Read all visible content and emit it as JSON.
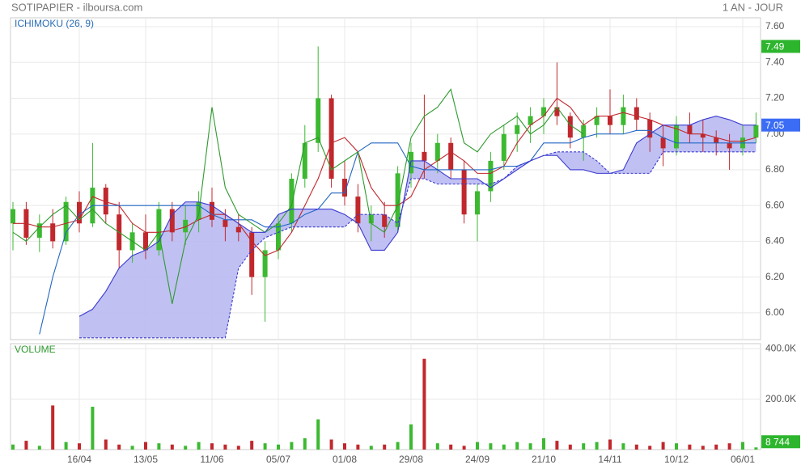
{
  "title": "SOTIPAPIER - ilboursa.com",
  "period": "1 AN - JOUR",
  "chart_data": [
    {
      "type": "candlestick",
      "label": "ICHIMOKU (26, 9)",
      "up_color": "#3cb931",
      "down_color": "#c0282d",
      "open": [
        6.5,
        6.58,
        6.42,
        6.5,
        6.4,
        6.62,
        6.5,
        6.7,
        6.55,
        6.35,
        6.45,
        6.35,
        6.58,
        6.45,
        6.52,
        6.62,
        6.52,
        6.48,
        6.45,
        6.2,
        6.35,
        6.5,
        6.75,
        6.95,
        7.2,
        6.75,
        6.65,
        6.5,
        6.55,
        6.48,
        6.78,
        6.9,
        6.85,
        6.95,
        6.8,
        6.55,
        6.68,
        6.85,
        7.0,
        7.05,
        7.1,
        7.15,
        7.1,
        6.98,
        7.05,
        7.1,
        7.05,
        7.15,
        7.08,
        6.98,
        6.92,
        7.05,
        7.0,
        6.98,
        6.95,
        6.92,
        6.98
      ],
      "high": [
        6.62,
        6.62,
        6.55,
        6.58,
        6.65,
        6.68,
        6.95,
        6.72,
        6.62,
        6.5,
        6.55,
        6.62,
        6.62,
        6.6,
        6.68,
        6.7,
        6.58,
        6.55,
        6.48,
        6.4,
        6.55,
        6.78,
        7.05,
        7.49,
        7.22,
        6.85,
        6.72,
        6.6,
        6.62,
        6.82,
        6.95,
        7.22,
        7.0,
        6.98,
        6.85,
        6.72,
        6.9,
        7.05,
        7.12,
        7.15,
        7.2,
        7.4,
        7.12,
        7.08,
        7.15,
        7.25,
        7.22,
        7.2,
        7.12,
        7.05,
        7.1,
        7.12,
        7.08,
        7.02,
        7.0,
        7.05,
        7.12
      ],
      "low": [
        6.35,
        6.38,
        6.34,
        6.36,
        6.38,
        6.45,
        6.48,
        6.5,
        6.25,
        6.28,
        6.3,
        6.32,
        6.4,
        6.38,
        6.45,
        6.48,
        6.4,
        6.4,
        6.1,
        5.95,
        6.3,
        6.45,
        6.7,
        6.9,
        6.7,
        6.6,
        6.45,
        6.4,
        6.42,
        6.45,
        6.7,
        6.75,
        6.78,
        6.75,
        6.5,
        6.4,
        6.62,
        6.8,
        6.9,
        6.95,
        7.0,
        7.05,
        6.92,
        6.85,
        6.98,
        7.0,
        7.0,
        7.02,
        6.9,
        6.82,
        6.88,
        6.95,
        6.9,
        6.88,
        6.8,
        6.88,
        6.95
      ],
      "close": [
        6.58,
        6.42,
        6.5,
        6.4,
        6.62,
        6.5,
        6.7,
        6.55,
        6.35,
        6.45,
        6.35,
        6.58,
        6.45,
        6.52,
        6.62,
        6.52,
        6.48,
        6.45,
        6.2,
        6.35,
        6.5,
        6.75,
        6.95,
        7.2,
        6.75,
        6.65,
        6.5,
        6.55,
        6.48,
        6.78,
        6.9,
        6.85,
        6.95,
        6.8,
        6.55,
        6.68,
        6.85,
        7.0,
        7.05,
        7.1,
        7.15,
        7.1,
        6.98,
        7.05,
        7.1,
        7.05,
        7.15,
        7.08,
        6.98,
        6.92,
        7.05,
        7.0,
        6.98,
        6.95,
        6.92,
        6.98,
        7.05
      ],
      "series": [
        {
          "color": "#c0282d",
          "values": [
            6.5,
            6.5,
            6.48,
            6.48,
            6.5,
            6.52,
            6.65,
            6.62,
            6.6,
            6.5,
            6.45,
            6.45,
            6.46,
            6.48,
            6.52,
            6.55,
            6.55,
            6.5,
            6.4,
            6.32,
            6.35,
            6.45,
            6.6,
            6.75,
            6.95,
            6.98,
            6.9,
            6.7,
            6.6,
            6.6,
            6.65,
            6.8,
            6.85,
            6.9,
            6.85,
            6.78,
            6.78,
            6.82,
            6.95,
            7.05,
            7.1,
            7.2,
            7.15,
            7.05,
            7.1,
            7.1,
            7.12,
            7.1,
            7.08,
            7.05,
            7.03,
            7.0,
            7.0,
            6.98,
            6.96,
            6.96,
            6.98
          ]
        },
        {
          "color": "#2166c4",
          "values": [
            null,
            null,
            5.88,
            6.2,
            6.45,
            6.55,
            6.6,
            6.6,
            6.6,
            6.6,
            6.6,
            6.6,
            6.6,
            6.6,
            6.6,
            6.55,
            6.52,
            6.52,
            6.52,
            6.48,
            6.48,
            6.5,
            6.55,
            6.58,
            6.67,
            6.67,
            6.9,
            6.95,
            6.95,
            6.95,
            6.82,
            6.8,
            6.8,
            6.8,
            6.8,
            6.8,
            6.8,
            6.82,
            6.82,
            6.85,
            6.95,
            6.95,
            6.95,
            6.98,
            7.0,
            7.0,
            7.0,
            7.02,
            7.02,
            6.98,
            6.95,
            6.95,
            6.95,
            6.95,
            6.95,
            6.95,
            6.95
          ]
        },
        {
          "color": "#2e9a2e",
          "values": [
            6.45,
            6.4,
            6.48,
            6.55,
            6.6,
            6.52,
            6.58,
            6.5,
            6.45,
            6.4,
            6.35,
            6.45,
            6.05,
            6.4,
            6.55,
            7.15,
            6.7,
            6.55,
            6.5,
            6.45,
            6.5,
            6.6,
            6.95,
            6.98,
            6.8,
            6.85,
            6.9,
            6.5,
            6.45,
            6.6,
            6.98,
            7.1,
            7.15,
            7.25,
            6.95,
            6.9,
            7.0,
            7.05,
            7.1,
            7.0,
            7.05,
            7.15,
            7.05,
            7.0,
            null,
            null,
            null,
            null,
            null,
            null,
            null,
            null,
            null,
            null,
            null,
            null,
            null
          ]
        },
        {
          "color": "#3a3ad0",
          "values": [
            null,
            null,
            null,
            null,
            null,
            5.98,
            6.02,
            6.12,
            6.25,
            6.32,
            6.35,
            6.4,
            6.55,
            6.62,
            6.62,
            6.6,
            6.55,
            6.5,
            6.45,
            6.45,
            6.55,
            6.58,
            6.58,
            6.58,
            6.58,
            6.55,
            6.5,
            6.35,
            6.35,
            6.45,
            6.85,
            6.85,
            6.8,
            6.75,
            6.75,
            6.75,
            6.7,
            6.75,
            6.8,
            6.85,
            6.88,
            6.88,
            6.8,
            6.8,
            6.78,
            6.78,
            6.8,
            6.95,
            7.0,
            7.05,
            7.05,
            7.05,
            7.08,
            7.1,
            7.08,
            7.05,
            7.05
          ]
        },
        {
          "color": "#3a3ad0",
          "values": [
            null,
            null,
            null,
            null,
            null,
            5.86,
            5.86,
            5.86,
            5.86,
            5.86,
            5.86,
            5.86,
            5.86,
            5.86,
            5.86,
            5.86,
            5.86,
            6.25,
            6.35,
            6.42,
            6.45,
            6.48,
            6.48,
            6.48,
            6.48,
            6.48,
            6.55,
            6.55,
            6.55,
            6.5,
            6.75,
            6.75,
            6.72,
            6.72,
            6.72,
            6.72,
            6.72,
            6.75,
            6.82,
            6.85,
            6.88,
            6.9,
            6.9,
            6.9,
            6.85,
            6.78,
            6.78,
            6.78,
            6.78,
            6.9,
            6.9,
            6.9,
            6.9,
            6.9,
            6.9,
            6.9,
            6.9
          ]
        }
      ],
      "cloud_color": "#b9b9f2",
      "ylim": [
        5.85,
        7.65
      ],
      "yticks": [
        {
          "value": 6,
          "label": "6.00"
        },
        {
          "value": 6.2,
          "label": "6.20"
        },
        {
          "value": 6.4,
          "label": "6.40"
        },
        {
          "value": 6.6,
          "label": "6.60"
        },
        {
          "value": 6.8,
          "label": "6.80"
        },
        {
          "value": 7,
          "label": "7.00"
        },
        {
          "value": 7.2,
          "label": "7.20"
        },
        {
          "value": 7.4,
          "label": "7.40"
        },
        {
          "value": 7.6,
          "label": "7.60"
        }
      ],
      "markers": [
        {
          "value": 7.49,
          "color": "#2db52d"
        },
        {
          "value": 7.05,
          "color": "#3b6cf5"
        }
      ],
      "grid": true
    },
    {
      "type": "bar",
      "label": "VOLUME",
      "categories": [
        null,
        null,
        null,
        null,
        null,
        "16/04",
        null,
        null,
        null,
        null,
        "13/05",
        null,
        null,
        null,
        null,
        "11/06",
        null,
        null,
        null,
        null,
        "05/07",
        null,
        null,
        null,
        null,
        "01/08",
        null,
        null,
        null,
        null,
        "29/08",
        null,
        null,
        null,
        null,
        "24/09",
        null,
        null,
        null,
        null,
        "21/10",
        null,
        null,
        null,
        null,
        "14/11",
        null,
        null,
        null,
        null,
        "10/12",
        null,
        null,
        null,
        null,
        "06/01",
        null
      ],
      "values": [
        20000,
        35000,
        15000,
        175000,
        30000,
        25000,
        170000,
        40000,
        20000,
        15000,
        30000,
        25000,
        20000,
        15000,
        30000,
        25000,
        20000,
        15000,
        35000,
        25000,
        20000,
        30000,
        45000,
        120000,
        40000,
        25000,
        20000,
        15000,
        20000,
        30000,
        100000,
        360000,
        25000,
        20000,
        15000,
        30000,
        25000,
        20000,
        30000,
        25000,
        45000,
        35000,
        20000,
        25000,
        30000,
        40000,
        25000,
        20000,
        15000,
        30000,
        25000,
        20000,
        15000,
        20000,
        25000,
        30000,
        8744
      ],
      "ylim": [
        0,
        420000
      ],
      "yticks": [
        {
          "value": 200000,
          "label": "200.0K"
        },
        {
          "value": 400000,
          "label": "400.0K"
        }
      ],
      "marker": {
        "value": 8744,
        "label": "8 744",
        "color": "#2db52d"
      },
      "grid": true
    }
  ]
}
